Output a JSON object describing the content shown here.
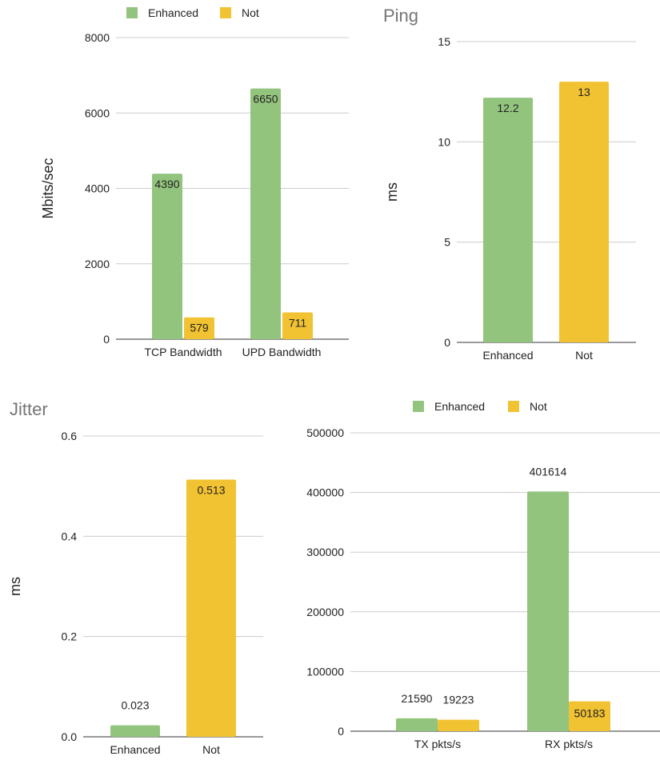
{
  "colors": {
    "enhanced": "#93c47d",
    "not": "#f1c232"
  },
  "chart_data": [
    {
      "id": "bandwidth",
      "type": "bar",
      "title": "",
      "xlabel": "",
      "ylabel": "Mbits/sec",
      "ylim": [
        0,
        8000
      ],
      "yticks": [
        0,
        2000,
        4000,
        6000,
        8000
      ],
      "categories": [
        "TCP Bandwidth",
        "UPD Bandwidth"
      ],
      "series": [
        {
          "name": "Enhanced",
          "values": [
            4390,
            6650
          ]
        },
        {
          "name": "Not",
          "values": [
            579,
            711
          ]
        }
      ],
      "legend": "top",
      "grid": true
    },
    {
      "id": "ping",
      "type": "bar",
      "title": "Ping",
      "xlabel": "",
      "ylabel": "ms",
      "ylim": [
        0,
        15
      ],
      "yticks": [
        0,
        5,
        10,
        15
      ],
      "categories": [
        "Enhanced",
        "Not"
      ],
      "values": [
        12.2,
        13
      ],
      "grid": true
    },
    {
      "id": "jitter",
      "type": "bar",
      "title": "Jitter",
      "xlabel": "",
      "ylabel": "ms",
      "ylim": [
        0,
        0.6
      ],
      "yticks": [
        "0.0",
        "0.2",
        "0.4",
        "0.6"
      ],
      "categories": [
        "Enhanced",
        "Not"
      ],
      "values": [
        0.023,
        0.513
      ],
      "grid": true
    },
    {
      "id": "packets",
      "type": "bar",
      "title": "",
      "xlabel": "",
      "ylabel": "",
      "ylim": [
        0,
        500000
      ],
      "yticks": [
        0,
        100000,
        200000,
        300000,
        400000,
        500000
      ],
      "categories": [
        "TX pkts/s",
        "RX pkts/s"
      ],
      "series": [
        {
          "name": "Enhanced",
          "values": [
            21590,
            401614
          ]
        },
        {
          "name": "Not",
          "values": [
            19223,
            50183
          ]
        }
      ],
      "legend": "top",
      "grid": true
    }
  ]
}
